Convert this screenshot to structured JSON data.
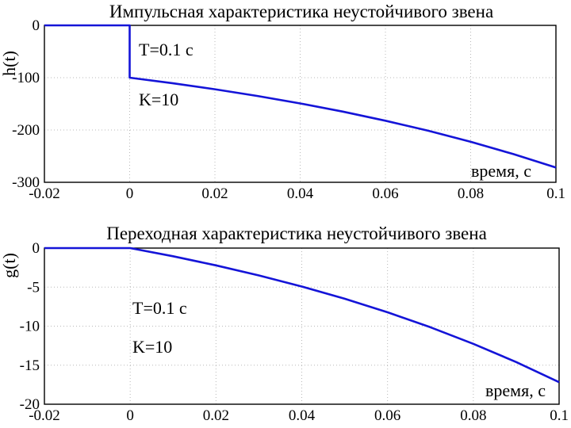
{
  "chart_data": [
    {
      "type": "line",
      "title": "Импульсная характеристика неустойчивого звена",
      "xlabel": "время, с",
      "ylabel": "h(t)",
      "xlim": [
        -0.02,
        0.1
      ],
      "ylim": [
        -300,
        0
      ],
      "xticks": [
        "-0.02",
        "0",
        "0.02",
        "0.04",
        "0.06",
        "0.08",
        "0.1"
      ],
      "yticks": [
        "0",
        "-100",
        "-200",
        "-300"
      ],
      "grid": true,
      "annotations": [
        "T=0.1 с",
        "K=10"
      ],
      "color": "#1414d8",
      "series": [
        {
          "x": [
            -0.02,
            0,
            0,
            0.01,
            0.02,
            0.03,
            0.04,
            0.05,
            0.06,
            0.07,
            0.08,
            0.09,
            0.1
          ],
          "y": [
            0,
            0,
            -100,
            -110.5,
            -122.1,
            -135,
            -149.2,
            -164.9,
            -182.2,
            -201.4,
            -222.6,
            -246,
            -271.8
          ]
        }
      ]
    },
    {
      "type": "line",
      "title": "Переходная характеристика неустойчивого звена",
      "xlabel": "время, с",
      "ylabel": "g(t)",
      "xlim": [
        -0.02,
        0.1
      ],
      "ylim": [
        -20,
        0
      ],
      "xticks": [
        "-0.02",
        "0",
        "0.02",
        "0.04",
        "0.06",
        "0.08",
        "0.1"
      ],
      "yticks": [
        "0",
        "-5",
        "-10",
        "-15",
        "-20"
      ],
      "grid": true,
      "annotations": [
        "T=0.1 с",
        "K=10"
      ],
      "color": "#1414d8",
      "series": [
        {
          "x": [
            -0.02,
            0,
            0.01,
            0.02,
            0.03,
            0.04,
            0.05,
            0.06,
            0.07,
            0.08,
            0.09,
            0.1
          ],
          "y": [
            0,
            0,
            -1.05,
            -2.21,
            -3.5,
            -4.92,
            -6.49,
            -8.22,
            -10.14,
            -12.26,
            -14.6,
            -17.18
          ]
        }
      ]
    }
  ]
}
